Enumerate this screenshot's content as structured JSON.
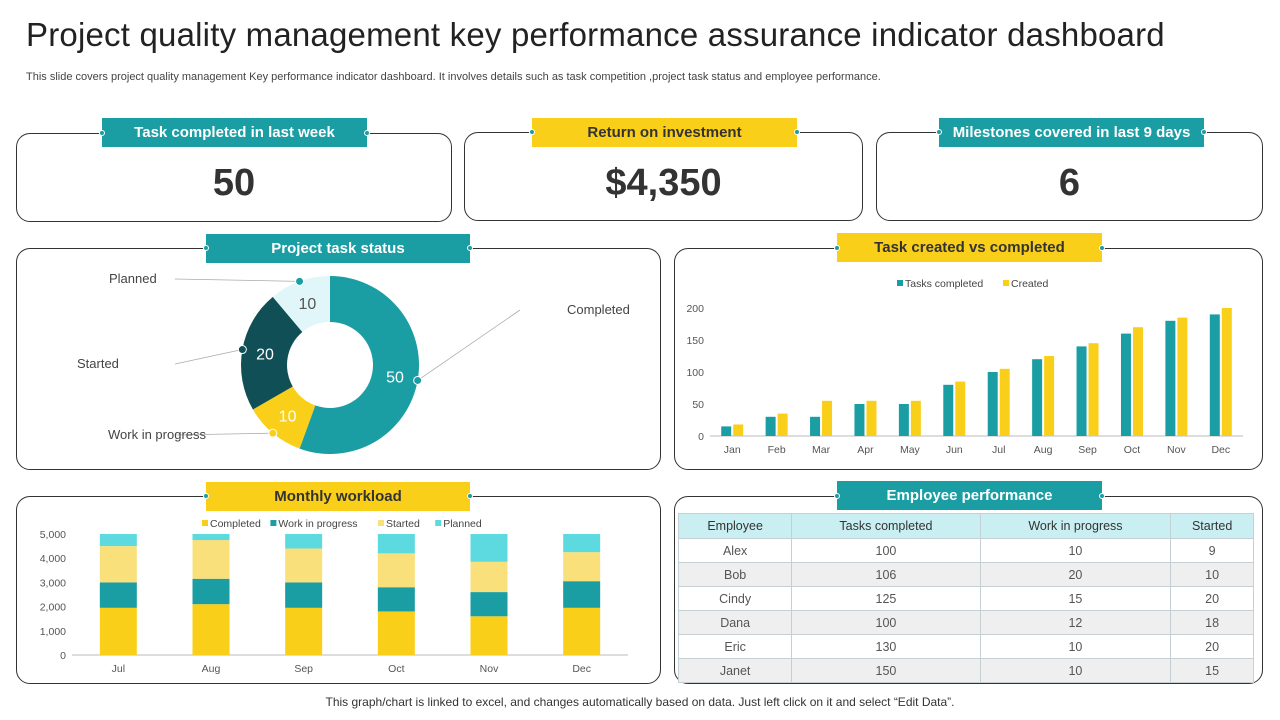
{
  "title": "Project quality management key performance assurance indicator dashboard",
  "subtitle": "This slide covers project quality management Key performance indicator dashboard. It involves details such as task competition ,project task status and employee performance.",
  "kpis": [
    {
      "label": "Task completed in last week",
      "value": "50"
    },
    {
      "label": "Return on investment",
      "value": "$4,350"
    },
    {
      "label": "Milestones covered in last 9 days",
      "value": "6"
    }
  ],
  "task_status": {
    "title": "Project task status"
  },
  "created_vs_completed": {
    "title": "Task created vs completed"
  },
  "workload": {
    "title": "Monthly workload"
  },
  "employee": {
    "title": "Employee performance",
    "headers": [
      "Employee",
      "Tasks completed",
      "Work in progress",
      "Started"
    ],
    "rows": [
      [
        "Alex",
        "100",
        "10",
        "9"
      ],
      [
        "Bob",
        "106",
        "20",
        "10"
      ],
      [
        "Cindy",
        "125",
        "15",
        "20"
      ],
      [
        "Dana",
        "100",
        "12",
        "18"
      ],
      [
        "Eric",
        "130",
        "10",
        "20"
      ],
      [
        "Janet",
        "150",
        "10",
        "15"
      ]
    ]
  },
  "footer": "This graph/chart is linked to excel,  and changes automatically based on data. Just left click on it and select “Edit Data”.",
  "colors": {
    "teal": "#1a9ea3",
    "dark_teal": "#0f4f55",
    "yellow": "#f9cf1a",
    "light_yellow": "#f9e07a",
    "cyan": "#5dd9e0",
    "pale": "#e0f6f8"
  },
  "chart_data": [
    {
      "type": "pie",
      "variant": "donut",
      "labels": [
        "Completed",
        "Work in progress",
        "Started",
        "Planned"
      ],
      "values": [
        50,
        10,
        20,
        10
      ],
      "colors": [
        "#1a9ea3",
        "#f9cf1a",
        "#0f4f55",
        "#e0f6f8"
      ]
    },
    {
      "type": "bar",
      "categories": [
        "Jan",
        "Feb",
        "Mar",
        "Apr",
        "May",
        "Jun",
        "Jul",
        "Aug",
        "Sep",
        "Oct",
        "Nov",
        "Dec"
      ],
      "series": [
        {
          "name": "Tasks completed",
          "color": "#1a9ea3",
          "values": [
            15,
            30,
            30,
            50,
            50,
            80,
            100,
            120,
            140,
            160,
            180,
            190
          ]
        },
        {
          "name": "Created",
          "color": "#f9cf1a",
          "values": [
            18,
            35,
            55,
            55,
            55,
            85,
            105,
            125,
            145,
            170,
            185,
            200
          ]
        }
      ],
      "ylim": [
        0,
        200
      ],
      "yticks": [
        "0",
        "50",
        "100",
        "150",
        "200"
      ],
      "legend": "top"
    },
    {
      "type": "bar",
      "stacked": true,
      "categories": [
        "Jul",
        "Aug",
        "Sep",
        "Oct",
        "Nov",
        "Dec"
      ],
      "series": [
        {
          "name": "Completed",
          "color": "#f9cf1a",
          "values": [
            1950,
            2100,
            1950,
            1800,
            1600,
            1950
          ]
        },
        {
          "name": "Work in progress",
          "color": "#1a9ea3",
          "values": [
            1050,
            1050,
            1050,
            1000,
            1000,
            1100
          ]
        },
        {
          "name": "Started",
          "color": "#f9e07a",
          "values": [
            1500,
            1600,
            1400,
            1400,
            1250,
            1200
          ]
        },
        {
          "name": "Planned",
          "color": "#5dd9e0",
          "values": [
            500,
            250,
            600,
            800,
            1150,
            750
          ]
        }
      ],
      "ylim": [
        0,
        5000
      ],
      "yticks": [
        "0",
        "1,000",
        "2,000",
        "3,000",
        "4,000",
        "5,000"
      ],
      "legend": "top"
    }
  ]
}
